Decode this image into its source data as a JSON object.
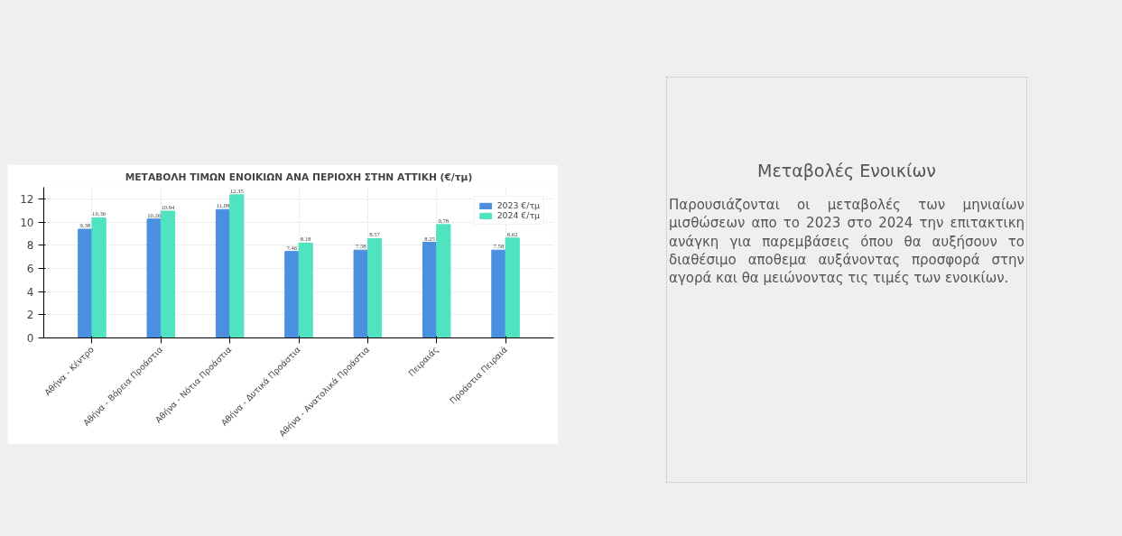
{
  "chart_data": [
    {
      "type": "bar",
      "title": "ΜΕΤΑΒΟΛΗ ΤΙΜΩΝ ΕΝΟΙΚΙΩΝ ΑΝΑ ΠΕΡΙΟΧΗ ΣΤΗΝ ΑΤΤΙΚΗ (€/τμ)",
      "categories": [
        "Αθήνα - Κέντρο",
        "Αθήνα - Βόρεια Προάστια",
        "Αθήνα - Νότια Προάστια",
        "Αθήνα - Δυτικά Προάστια",
        "Αθήνα - Ανατολικά Προάστια",
        "Πειραιάς",
        "Προάστια Πειραιά"
      ],
      "series": [
        {
          "name": "2023 €/τμ",
          "color": "#4a8fe0",
          "values": [
            9.38,
            10.26,
            11.08,
            7.46,
            7.58,
            8.25,
            7.58
          ]
        },
        {
          "name": "2024 €/τμ",
          "color": "#50e3c2",
          "values": [
            10.36,
            10.94,
            12.35,
            8.18,
            8.57,
            9.78,
            8.62
          ]
        }
      ],
      "ylim": [
        0,
        13
      ],
      "yticks": [
        0,
        2,
        4,
        6,
        8,
        10,
        12
      ],
      "grid": true,
      "legend": "top right",
      "data_labels": true
    },
    {
      "type": "other",
      "title": "Μεταβολές Ενοικίων",
      "annotations": [
        "Παρουσιάζονται οι μεταβολές των μηνιαίων μισθώσεων απο το 2023 στο 2024 την επιτακτικη ανάγκη για παρεμβάσεις όπου θα αυξήσουν το διαθέσιμο αποθεμα αυξάνοντας προσφορά στην αγορά και θα μειώνοντας τις τιμές των ενοικίων."
      ]
    }
  ]
}
